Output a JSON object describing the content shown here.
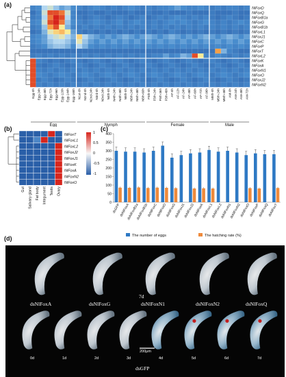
{
  "panel_a": {
    "label": "(a)",
    "rows": [
      "NlFoxD",
      "NlFoxQ",
      "NlFoxB1a",
      "NlFoxG",
      "NlFoxB1b",
      "NlFoxL1",
      "NlFoxJ1",
      "NlFoxC",
      "NlFoxP",
      "NlFoxT",
      "NlFoxL2",
      "NlFoxK",
      "NlFoxA",
      "NlFoxN1",
      "NlFoxO",
      "NlFoxJ2",
      "NlFoxN2"
    ],
    "groups": [
      {
        "name": "Egg",
        "columns": [
          "Egg-0h",
          "Egg-24h",
          "Egg-48h",
          "Egg-72h",
          "Egg-96h",
          "Egg-120h",
          "Egg-144h",
          "Egg-168h"
        ]
      },
      {
        "name": "Nymph",
        "columns": [
          "N1st-0h",
          "N2nd-0h",
          "N2nd-24h",
          "N3rd-0h",
          "N3rd-24h",
          "N4th-0h",
          "N4th-24h",
          "N4th-48h",
          "N5th-0h",
          "N5th-24h",
          "N5th-48h",
          "N5th-60h"
        ]
      },
      {
        "name": "Female",
        "columns": [
          "F5th-0h",
          "F5th-24h",
          "F5th-36h",
          "F5th-48h",
          "AF-0h",
          "AF-12h",
          "AF-24h",
          "AF-48h",
          "AF-60h",
          "AF-72h",
          "AF-96h"
        ]
      },
      {
        "name": "Male",
        "columns": [
          "M5th-0h",
          "M5th-24h",
          "M5th-48h",
          "AM-0h",
          "AM-24h",
          "AM-48h",
          "AM-72h"
        ]
      }
    ],
    "cell_values": [
      [
        0.3,
        0.35,
        0.55,
        0.6,
        0.5,
        0.4,
        0.45,
        0.35,
        0.3,
        0.25,
        0.3,
        0.35,
        0.3,
        0.25,
        0.3,
        0.25,
        0.3,
        0.35,
        0.3,
        0.25,
        0.3,
        0.25,
        0.3,
        0.3,
        0.35,
        0.4,
        0.35,
        0.3,
        0.3,
        0.35,
        0.3,
        0.25,
        0.3,
        0.25,
        0.3,
        0.3,
        0.25,
        0.3
      ],
      [
        0.2,
        0.3,
        0.6,
        0.95,
        0.95,
        0.9,
        0.6,
        0.3,
        0.2,
        0.2,
        0.25,
        0.2,
        0.2,
        0.25,
        0.2,
        0.2,
        0.2,
        0.25,
        0.2,
        0.2,
        0.25,
        0.2,
        0.2,
        0.25,
        0.2,
        0.2,
        0.2,
        0.25,
        0.2,
        0.2,
        0.2,
        0.25,
        0.2,
        0.2,
        0.2,
        0.25,
        0.2,
        0.2
      ],
      [
        0.25,
        0.3,
        0.55,
        0.9,
        1.0,
        0.95,
        0.55,
        0.3,
        0.25,
        0.2,
        0.25,
        0.3,
        0.25,
        0.2,
        0.25,
        0.3,
        0.25,
        0.2,
        0.25,
        0.3,
        0.2,
        0.25,
        0.3,
        0.25,
        0.3,
        0.35,
        0.3,
        0.25,
        0.3,
        0.25,
        0.3,
        0.25,
        0.2,
        0.25,
        0.3,
        0.25,
        0.2,
        0.25
      ],
      [
        0.3,
        0.35,
        0.6,
        0.95,
        1.0,
        0.9,
        0.5,
        0.35,
        0.3,
        0.25,
        0.3,
        0.35,
        0.3,
        0.25,
        0.3,
        0.35,
        0.25,
        0.3,
        0.35,
        0.3,
        0.25,
        0.3,
        0.25,
        0.3,
        0.35,
        0.3,
        0.35,
        0.3,
        0.25,
        0.3,
        0.35,
        0.3,
        0.25,
        0.3,
        0.25,
        0.3,
        0.35,
        0.3
      ],
      [
        0.25,
        0.3,
        0.5,
        0.85,
        0.95,
        0.7,
        0.45,
        0.3,
        0.25,
        0.3,
        0.25,
        0.3,
        0.25,
        0.3,
        0.25,
        0.3,
        0.25,
        0.3,
        0.25,
        0.3,
        0.25,
        0.3,
        0.25,
        0.3,
        0.25,
        0.3,
        0.25,
        0.3,
        0.25,
        0.3,
        0.25,
        0.3,
        0.25,
        0.3,
        0.25,
        0.3,
        0.25,
        0.3
      ],
      [
        0.2,
        0.25,
        0.45,
        0.65,
        0.75,
        0.8,
        0.7,
        0.4,
        0.25,
        0.2,
        0.25,
        0.2,
        0.25,
        0.2,
        0.25,
        0.2,
        0.25,
        0.2,
        0.25,
        0.2,
        0.25,
        0.2,
        0.25,
        0.2,
        0.3,
        0.25,
        0.2,
        0.25,
        0.2,
        0.25,
        0.2,
        0.25,
        0.2,
        0.25,
        0.2,
        0.25,
        0.2,
        0.25
      ],
      [
        0.3,
        0.35,
        0.4,
        0.55,
        0.6,
        0.65,
        0.55,
        0.45,
        0.75,
        0.55,
        0.45,
        0.4,
        0.35,
        0.4,
        0.35,
        0.4,
        0.45,
        0.4,
        0.35,
        0.4,
        0.45,
        0.4,
        0.35,
        0.4,
        0.45,
        0.4,
        0.35,
        0.4,
        0.35,
        0.4,
        0.45,
        0.4,
        0.35,
        0.4,
        0.45,
        0.4,
        0.35,
        0.4
      ],
      [
        0.3,
        0.35,
        0.4,
        0.5,
        0.55,
        0.55,
        0.5,
        0.4,
        0.65,
        0.5,
        0.4,
        0.35,
        0.4,
        0.35,
        0.4,
        0.35,
        0.4,
        0.35,
        0.4,
        0.35,
        0.4,
        0.35,
        0.4,
        0.35,
        0.4,
        0.35,
        0.4,
        0.35,
        0.4,
        0.35,
        0.4,
        0.35,
        0.4,
        0.35,
        0.4,
        0.35,
        0.4,
        0.35
      ],
      [
        0.25,
        0.3,
        0.35,
        0.45,
        0.5,
        0.5,
        0.45,
        0.35,
        0.55,
        0.45,
        0.35,
        0.3,
        0.35,
        0.3,
        0.35,
        0.3,
        0.35,
        0.3,
        0.35,
        0.3,
        0.35,
        0.3,
        0.35,
        0.3,
        0.35,
        0.3,
        0.35,
        0.3,
        0.35,
        0.3,
        0.35,
        0.3,
        0.35,
        0.3,
        0.35,
        0.3,
        0.35,
        0.3
      ],
      [
        0.2,
        0.2,
        0.2,
        0.2,
        0.2,
        0.2,
        0.2,
        0.2,
        0.2,
        0.2,
        0.2,
        0.2,
        0.2,
        0.2,
        0.2,
        0.2,
        0.2,
        0.2,
        0.2,
        0.2,
        0.2,
        0.2,
        0.2,
        0.2,
        0.2,
        0.2,
        0.2,
        0.2,
        0.2,
        0.2,
        0.2,
        0.2,
        0.85,
        0.45,
        0.3,
        0.25,
        0.2,
        0.2
      ],
      [
        0.25,
        0.3,
        0.25,
        0.3,
        0.25,
        0.3,
        0.25,
        0.3,
        0.25,
        0.3,
        0.25,
        0.3,
        0.25,
        0.3,
        0.25,
        0.3,
        0.25,
        0.3,
        0.25,
        0.3,
        0.25,
        0.3,
        0.3,
        0.4,
        0.3,
        0.35,
        0.45,
        0.4,
        0.95,
        0.7,
        0.3,
        0.25,
        0.35,
        0.3,
        0.25,
        0.3,
        0.25,
        0.3
      ],
      [
        0.95,
        0.3,
        0.25,
        0.2,
        0.25,
        0.2,
        0.25,
        0.3,
        0.25,
        0.2,
        0.25,
        0.3,
        0.25,
        0.2,
        0.25,
        0.3,
        0.25,
        0.2,
        0.25,
        0.3,
        0.25,
        0.2,
        0.25,
        0.3,
        0.25,
        0.2,
        0.25,
        0.3,
        0.25,
        0.2,
        0.25,
        0.3,
        0.25,
        0.2,
        0.25,
        0.3,
        0.25,
        0.2
      ],
      [
        0.95,
        0.25,
        0.2,
        0.25,
        0.3,
        0.25,
        0.2,
        0.25,
        0.3,
        0.25,
        0.2,
        0.25,
        0.3,
        0.25,
        0.2,
        0.25,
        0.3,
        0.25,
        0.2,
        0.25,
        0.3,
        0.25,
        0.2,
        0.25,
        0.3,
        0.25,
        0.2,
        0.25,
        0.3,
        0.25,
        0.2,
        0.25,
        0.3,
        0.25,
        0.2,
        0.25,
        0.3,
        0.25
      ],
      [
        0.95,
        0.3,
        0.25,
        0.3,
        0.25,
        0.3,
        0.25,
        0.3,
        0.25,
        0.3,
        0.25,
        0.3,
        0.25,
        0.3,
        0.25,
        0.3,
        0.25,
        0.3,
        0.25,
        0.3,
        0.25,
        0.3,
        0.25,
        0.3,
        0.25,
        0.3,
        0.25,
        0.3,
        0.25,
        0.3,
        0.25,
        0.3,
        0.25,
        0.3,
        0.25,
        0.3,
        0.25,
        0.3
      ],
      [
        0.95,
        0.35,
        0.3,
        0.25,
        0.3,
        0.35,
        0.3,
        0.25,
        0.3,
        0.35,
        0.3,
        0.25,
        0.3,
        0.35,
        0.3,
        0.25,
        0.3,
        0.35,
        0.3,
        0.25,
        0.3,
        0.35,
        0.3,
        0.25,
        0.3,
        0.35,
        0.3,
        0.25,
        0.3,
        0.35,
        0.3,
        0.25,
        0.3,
        0.35,
        0.3,
        0.25,
        0.3,
        0.35
      ],
      [
        0.95,
        0.25,
        0.3,
        0.25,
        0.2,
        0.25,
        0.3,
        0.25,
        0.2,
        0.25,
        0.3,
        0.25,
        0.2,
        0.25,
        0.3,
        0.25,
        0.2,
        0.25,
        0.3,
        0.25,
        0.2,
        0.25,
        0.3,
        0.25,
        0.2,
        0.25,
        0.3,
        0.25,
        0.2,
        0.25,
        0.3,
        0.25,
        0.2,
        0.25,
        0.3,
        0.25,
        0.2,
        0.25
      ],
      [
        0.95,
        0.3,
        0.25,
        0.3,
        0.25,
        0.3,
        0.25,
        0.3,
        0.25,
        0.3,
        0.25,
        0.3,
        0.25,
        0.3,
        0.25,
        0.3,
        0.25,
        0.3,
        0.25,
        0.3,
        0.25,
        0.3,
        0.25,
        0.3,
        0.25,
        0.3,
        0.25,
        0.3,
        0.25,
        0.3,
        0.25,
        0.3,
        0.25,
        0.3,
        0.25,
        0.3,
        0.25,
        0.3
      ]
    ]
  },
  "panel_b": {
    "label": "(b)",
    "rows": [
      "NlFoxT",
      "NlFoxL1",
      "NlFoxL2",
      "NlFoxJ2",
      "NlFoxJ1",
      "NlFoxK",
      "NlFoxA",
      "NlFoxN2",
      "NlFoxO"
    ],
    "columns": [
      "Gut",
      "Salivary gland",
      "Fat body",
      "Integument",
      "Testis",
      "Ovary"
    ],
    "cell_values": [
      [
        -0.6,
        -0.7,
        -0.6,
        -0.7,
        1.0,
        -0.6
      ],
      [
        -0.4,
        -0.8,
        -0.2,
        0.9,
        -0.6,
        -0.7
      ],
      [
        -0.6,
        -0.5,
        -0.6,
        -0.6,
        -0.5,
        1.0
      ],
      [
        -0.5,
        -0.6,
        -0.5,
        -0.6,
        -0.5,
        1.0
      ],
      [
        -0.5,
        -0.5,
        -0.6,
        -0.6,
        -0.4,
        1.0
      ],
      [
        -0.6,
        -0.5,
        -0.6,
        -0.5,
        -0.5,
        1.0
      ],
      [
        -0.6,
        -0.6,
        -0.5,
        -0.6,
        -0.5,
        1.0
      ],
      [
        -0.5,
        -0.6,
        -0.6,
        -0.5,
        -0.6,
        1.0
      ],
      [
        -0.6,
        -0.5,
        -0.6,
        -0.6,
        -0.5,
        1.0
      ]
    ],
    "scale_ticks": [
      "1",
      "0.5",
      "0",
      "-0.5",
      "-1"
    ]
  },
  "chart_data": {
    "type": "bar",
    "categories": [
      "dsGFP",
      "dsNlFoxA",
      "dsNlFoxB1a",
      "dsNlFoxB1b",
      "dsNlFoxC",
      "dsNlFoxD",
      "dsNlFoxG",
      "dsNlFoxJ1",
      "dsNlFoxJ2",
      "dsNlFoxK",
      "dsNlFoxL1",
      "dsNlFoxL2",
      "dsNlFoxN1",
      "dsNlFoxN2",
      "dsNlFoxO",
      "dsNlFoxP",
      "dsNlFoxQ",
      "dsNlFoxT"
    ],
    "series": [
      {
        "name": "The number of eggs",
        "values": [
          300,
          295,
          295,
          290,
          300,
          330,
          260,
          275,
          285,
          290,
          305,
          295,
          300,
          290,
          275,
          285,
          280,
          280
        ]
      },
      {
        "name": "The hatching rate (%)",
        "values": [
          85,
          84,
          86,
          83,
          85,
          84,
          82,
          0,
          80,
          81,
          80,
          0,
          0,
          0,
          82,
          80,
          0,
          83
        ]
      }
    ],
    "ylim": [
      0,
      400
    ],
    "yticks": [
      0,
      50,
      100,
      150,
      200,
      250,
      300,
      350,
      400
    ],
    "legend_position": "bottom",
    "label": "(c)"
  },
  "panel_d": {
    "label": "(d)",
    "top_row": [
      "dsNlFoxA",
      "dsNlFoxG",
      "dsNlFoxN1",
      "dsNlFoxN2",
      "dsNlFoxQ"
    ],
    "top_day": "7d",
    "bottom_days": [
      "0d",
      "1d",
      "2d",
      "3d",
      "4d",
      "5d",
      "6d",
      "7d"
    ],
    "scale_bar": "200μm",
    "bottom_label": "dsGFP"
  },
  "colors": {
    "heat_low": "#2a5fa8",
    "heat_high": "#d7221b",
    "bar_blue": "#2e79c4",
    "bar_orange": "#ef8a3b"
  }
}
